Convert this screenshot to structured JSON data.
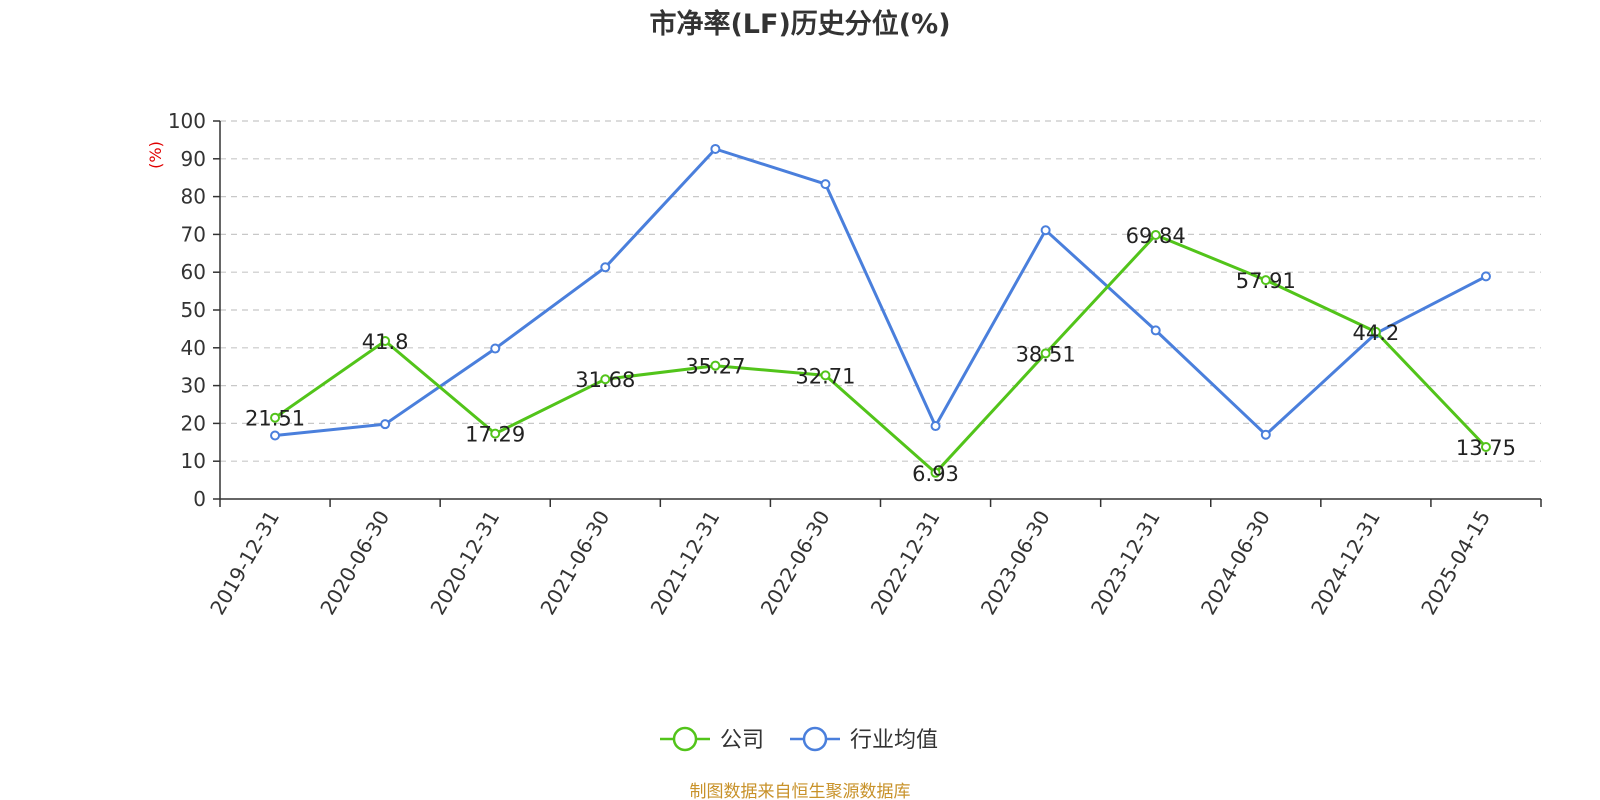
{
  "chart_data": {
    "type": "line",
    "title": "市净率(LF)历史分位(%)",
    "ylabel": "(%)",
    "ylim": [
      0,
      100
    ],
    "yticks": [
      0,
      10,
      20,
      30,
      40,
      50,
      60,
      70,
      80,
      90,
      100
    ],
    "categories": [
      "2019-12-31",
      "2020-06-30",
      "2020-12-31",
      "2021-06-30",
      "2021-12-31",
      "2022-06-30",
      "2022-12-31",
      "2023-06-30",
      "2023-12-31",
      "2024-06-30",
      "2024-12-31",
      "2025-04-15"
    ],
    "series": [
      {
        "name": "公司",
        "color": "#52c41a",
        "values": [
          21.51,
          41.8,
          17.29,
          31.68,
          35.27,
          32.71,
          6.93,
          38.51,
          69.84,
          57.91,
          44.2,
          13.75
        ],
        "labels": [
          "21.51",
          "41.8",
          "17.29",
          "31.68",
          "35.27",
          "32.71",
          "6.93",
          "38.51",
          "69.84",
          "57.91",
          "44.2",
          "13.75"
        ]
      },
      {
        "name": "行业均值",
        "color": "#4a7fdc",
        "values": [
          16.8,
          19.8,
          39.8,
          61.3,
          92.6,
          83.3,
          19.3,
          71.1,
          44.6,
          17.0,
          43.8,
          58.9
        ]
      }
    ],
    "grid": true,
    "legend_position": "bottom-center"
  },
  "source_note": "制图数据来自恒生聚源数据库"
}
